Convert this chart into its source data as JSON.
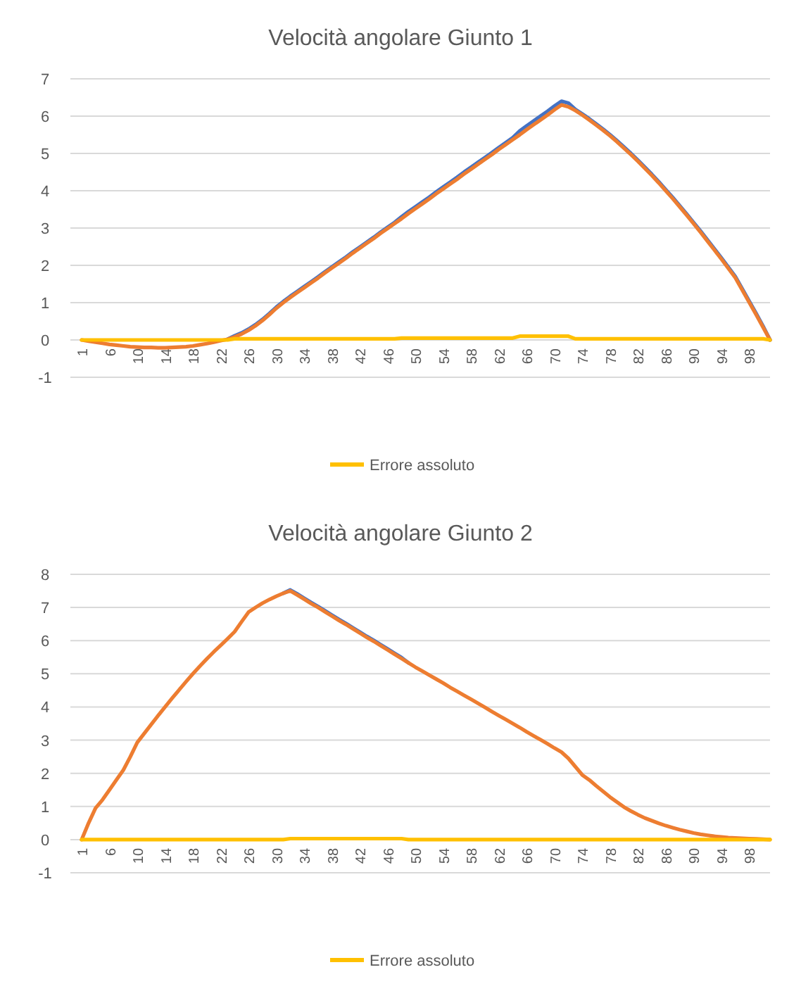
{
  "chart_data": [
    {
      "type": "line",
      "title": "Velocità angolare Giunto 1",
      "categories": [
        "1",
        null,
        null,
        null,
        "6",
        null,
        null,
        null,
        "10",
        null,
        null,
        null,
        "14",
        null,
        null,
        null,
        "18",
        null,
        null,
        null,
        "22",
        null,
        null,
        null,
        "26",
        null,
        null,
        null,
        "30",
        null,
        null,
        null,
        "34",
        null,
        null,
        null,
        "38",
        null,
        null,
        null,
        "42",
        null,
        null,
        null,
        "46",
        null,
        null,
        null,
        "50",
        null,
        null,
        null,
        "54",
        null,
        null,
        null,
        "58",
        null,
        null,
        null,
        "62",
        null,
        null,
        null,
        "66",
        null,
        null,
        null,
        "70",
        null,
        null,
        null,
        "74",
        null,
        null,
        null,
        "78",
        null,
        null,
        null,
        "82",
        null,
        null,
        null,
        "86",
        null,
        null,
        null,
        "90",
        null,
        null,
        null,
        "94",
        null,
        null,
        null,
        "98",
        null,
        null,
        null
      ],
      "series": [
        {
          "color": "#4472c4",
          "values": [
            null,
            null,
            null,
            null,
            null,
            null,
            null,
            null,
            null,
            null,
            null,
            null,
            null,
            null,
            null,
            null,
            null,
            null,
            null,
            null,
            null,
            0.02,
            0.11,
            0.19,
            0.29,
            0.41,
            0.55,
            0.71,
            0.88,
            1.03,
            1.17,
            1.3,
            1.43,
            1.56,
            1.69,
            1.83,
            1.96,
            2.09,
            2.22,
            2.36,
            2.49,
            2.62,
            2.75,
            2.89,
            3.02,
            3.15,
            3.3,
            3.44,
            3.57,
            3.7,
            3.83,
            3.97,
            4.1,
            4.23,
            4.36,
            4.5,
            4.63,
            4.76,
            4.89,
            5.02,
            5.16,
            5.29,
            5.42,
            5.6,
            5.74,
            5.87,
            6.0,
            6.13,
            6.27,
            6.4,
            6.35,
            6.18,
            6.06,
            5.93,
            5.79,
            5.65,
            5.5,
            5.34,
            5.17,
            5.0,
            4.82,
            4.63,
            4.44,
            4.24,
            4.03,
            3.82,
            3.6,
            3.38,
            3.15,
            2.92,
            2.68,
            2.44,
            2.2,
            1.95,
            1.7,
            1.37,
            1.04,
            0.71,
            0.37,
            0
          ]
        },
        {
          "color": "#ed7d31",
          "values": [
            0,
            -0.03,
            -0.06,
            -0.09,
            -0.12,
            -0.14,
            -0.16,
            -0.18,
            -0.19,
            -0.2,
            -0.2,
            -0.21,
            -0.21,
            -0.2,
            -0.19,
            -0.18,
            -0.16,
            -0.13,
            -0.1,
            -0.06,
            -0.02,
            0.02,
            0.08,
            0.16,
            0.26,
            0.38,
            0.52,
            0.68,
            0.85,
            1.0,
            1.14,
            1.27,
            1.4,
            1.53,
            1.66,
            1.8,
            1.93,
            2.06,
            2.19,
            2.33,
            2.46,
            2.59,
            2.72,
            2.86,
            2.99,
            3.12,
            3.25,
            3.39,
            3.52,
            3.65,
            3.78,
            3.92,
            4.05,
            4.18,
            4.31,
            4.45,
            4.58,
            4.71,
            4.84,
            4.97,
            5.11,
            5.24,
            5.37,
            5.5,
            5.64,
            5.77,
            5.9,
            6.03,
            6.17,
            6.3,
            6.25,
            6.15,
            6.03,
            5.9,
            5.76,
            5.62,
            5.47,
            5.31,
            5.14,
            4.97,
            4.79,
            4.6,
            4.41,
            4.21,
            4.0,
            3.79,
            3.57,
            3.35,
            3.12,
            2.89,
            2.65,
            2.41,
            2.17,
            1.92,
            1.67,
            1.34,
            1.01,
            0.68,
            0.34,
            0
          ]
        },
        {
          "name": "Errore assoluto",
          "color": "#ffc000",
          "values": [
            0,
            0,
            0,
            0,
            0,
            0,
            0,
            0,
            0,
            0,
            0,
            0,
            0,
            0,
            0,
            0,
            0,
            0,
            0,
            0,
            0,
            0,
            0.03,
            0.03,
            0.03,
            0.03,
            0.03,
            0.03,
            0.03,
            0.03,
            0.03,
            0.03,
            0.03,
            0.03,
            0.03,
            0.03,
            0.03,
            0.03,
            0.03,
            0.03,
            0.03,
            0.03,
            0.03,
            0.03,
            0.03,
            0.03,
            0.05,
            0.05,
            0.05,
            0.05,
            0.05,
            0.05,
            0.05,
            0.05,
            0.05,
            0.05,
            0.05,
            0.05,
            0.05,
            0.05,
            0.05,
            0.05,
            0.05,
            0.1,
            0.1,
            0.1,
            0.1,
            0.1,
            0.1,
            0.1,
            0.1,
            0.03,
            0.03,
            0.03,
            0.03,
            0.03,
            0.03,
            0.03,
            0.03,
            0.03,
            0.03,
            0.03,
            0.03,
            0.03,
            0.03,
            0.03,
            0.03,
            0.03,
            0.03,
            0.03,
            0.03,
            0.03,
            0.03,
            0.03,
            0.03,
            0.03,
            0.03,
            0.03,
            0.03,
            0
          ]
        }
      ],
      "ylim": [
        -1,
        7
      ],
      "yticks": [
        -1,
        0,
        1,
        2,
        3,
        4,
        5,
        6,
        7
      ],
      "grid": "y",
      "legend": "bottom"
    },
    {
      "type": "line",
      "title": "Velocità angolare Giunto 2",
      "categories": [
        "1",
        null,
        null,
        null,
        "6",
        null,
        null,
        null,
        "10",
        null,
        null,
        null,
        "14",
        null,
        null,
        null,
        "18",
        null,
        null,
        null,
        "22",
        null,
        null,
        null,
        "26",
        null,
        null,
        null,
        "30",
        null,
        null,
        null,
        "34",
        null,
        null,
        null,
        "38",
        null,
        null,
        null,
        "42",
        null,
        null,
        null,
        "46",
        null,
        null,
        null,
        "50",
        null,
        null,
        null,
        "54",
        null,
        null,
        null,
        "58",
        null,
        null,
        null,
        "62",
        null,
        null,
        null,
        "66",
        null,
        null,
        null,
        "70",
        null,
        null,
        null,
        "74",
        null,
        null,
        null,
        "78",
        null,
        null,
        null,
        "82",
        null,
        null,
        null,
        "86",
        null,
        null,
        null,
        "90",
        null,
        null,
        null,
        "94",
        null,
        null,
        null,
        "98",
        null,
        null,
        null
      ],
      "series": [
        {
          "color": "#4472c4",
          "values": [
            null,
            null,
            null,
            null,
            null,
            null,
            null,
            null,
            null,
            null,
            null,
            null,
            null,
            null,
            null,
            null,
            null,
            null,
            null,
            null,
            null,
            null,
            null,
            null,
            null,
            null,
            null,
            null,
            null,
            7.43,
            7.53,
            7.41,
            7.28,
            7.15,
            7.03,
            6.9,
            6.77,
            6.64,
            6.52,
            6.39,
            6.26,
            6.13,
            6.01,
            5.88,
            5.75,
            5.62,
            5.49,
            5.33,
            null,
            null,
            null,
            null,
            null,
            null,
            null,
            null,
            null,
            null,
            null,
            null,
            null,
            null,
            null,
            null,
            null,
            null,
            null,
            null,
            null,
            null,
            null,
            null,
            null,
            null,
            null,
            null,
            null,
            null,
            null,
            null,
            null,
            null,
            null,
            null,
            null,
            null,
            null,
            null,
            null,
            null,
            null,
            null,
            null,
            null,
            null,
            null,
            null,
            null,
            null,
            null
          ]
        },
        {
          "color": "#ed7d31",
          "values": [
            0,
            0.5,
            0.95,
            1.2,
            1.5,
            1.8,
            2.1,
            2.5,
            2.93,
            3.2,
            3.47,
            3.74,
            4.0,
            4.26,
            4.51,
            4.76,
            5.0,
            5.23,
            5.45,
            5.66,
            5.86,
            6.06,
            6.27,
            6.57,
            6.86,
            7.0,
            7.13,
            7.24,
            7.34,
            7.43,
            7.5,
            7.38,
            7.25,
            7.12,
            7.0,
            6.87,
            6.74,
            6.61,
            6.49,
            6.36,
            6.23,
            6.1,
            5.98,
            5.85,
            5.72,
            5.59,
            5.46,
            5.33,
            5.2,
            5.08,
            4.96,
            4.84,
            4.72,
            4.59,
            4.47,
            4.35,
            4.23,
            4.11,
            3.99,
            3.86,
            3.74,
            3.62,
            3.5,
            3.38,
            3.25,
            3.13,
            3.01,
            2.89,
            2.76,
            2.64,
            2.45,
            2.2,
            1.95,
            1.8,
            1.62,
            1.45,
            1.28,
            1.13,
            0.98,
            0.86,
            0.75,
            0.65,
            0.57,
            0.49,
            0.42,
            0.36,
            0.3,
            0.25,
            0.2,
            0.16,
            0.13,
            0.1,
            0.08,
            0.06,
            0.05,
            0.04,
            0.03,
            0.02,
            0.01,
            0
          ]
        },
        {
          "name": "Errore assoluto",
          "color": "#ffc000",
          "values": [
            0,
            0,
            0,
            0,
            0,
            0,
            0,
            0,
            0,
            0,
            0,
            0,
            0,
            0,
            0,
            0,
            0,
            0,
            0,
            0,
            0,
            0,
            0,
            0,
            0,
            0,
            0,
            0,
            0,
            0,
            0.03,
            0.03,
            0.03,
            0.03,
            0.03,
            0.03,
            0.03,
            0.03,
            0.03,
            0.03,
            0.03,
            0.03,
            0.03,
            0.03,
            0.03,
            0.03,
            0.03,
            0,
            0,
            0,
            0,
            0,
            0,
            0,
            0,
            0,
            0,
            0,
            0,
            0,
            0,
            0,
            0,
            0,
            0,
            0,
            0,
            0,
            0,
            0,
            0,
            0,
            0,
            0,
            0,
            0,
            0,
            0,
            0,
            0,
            0,
            0,
            0,
            0,
            0,
            0,
            0,
            0,
            0,
            0,
            0,
            0,
            0,
            0,
            0,
            0,
            0,
            0,
            0,
            0
          ]
        }
      ],
      "ylim": [
        -1,
        8
      ],
      "yticks": [
        -1,
        0,
        1,
        2,
        3,
        4,
        5,
        6,
        7,
        8
      ],
      "grid": "y",
      "legend": "bottom"
    }
  ]
}
